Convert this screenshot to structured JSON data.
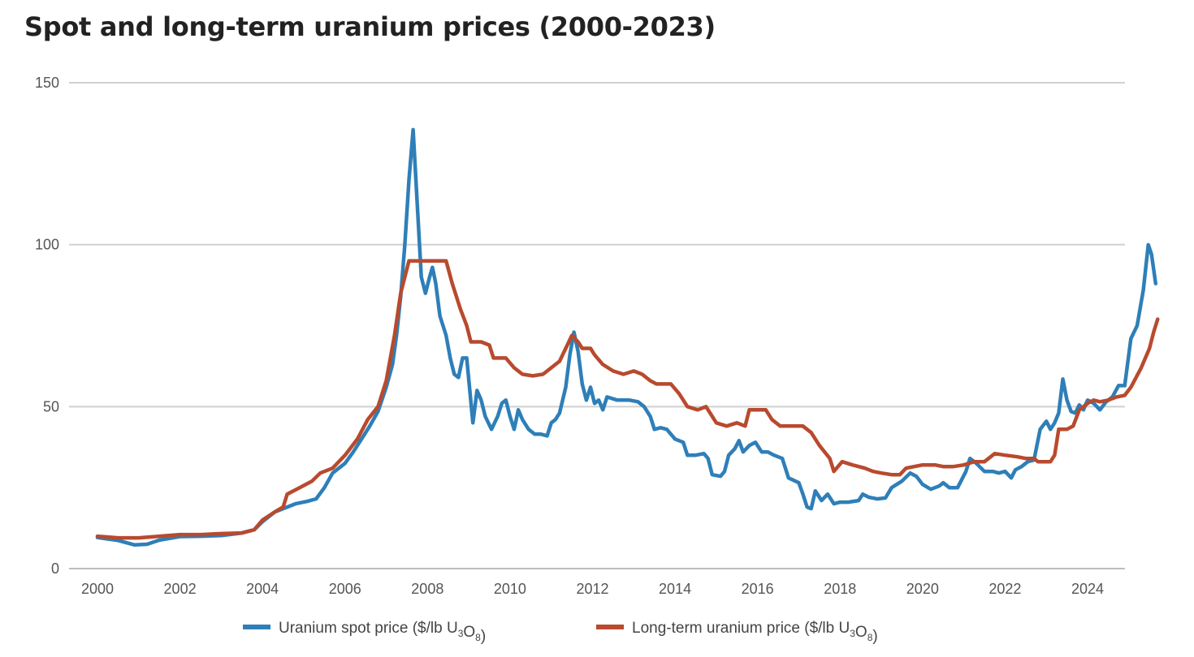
{
  "title": "Spot and long-term uranium prices (2000-2023)",
  "chart_data": {
    "type": "line",
    "title": "Spot and long-term uranium prices (2000-2023)",
    "xlabel": "",
    "ylabel": "",
    "xlim": [
      2000,
      2025
    ],
    "ylim": [
      0,
      150
    ],
    "yticks": [
      0,
      50,
      100,
      150
    ],
    "xticks": [
      2000,
      2002,
      2004,
      2006,
      2008,
      2010,
      2012,
      2014,
      2016,
      2018,
      2020,
      2022,
      2024
    ],
    "grid": true,
    "legend_position": "bottom",
    "series": [
      {
        "name": "Uranium spot price ($/lb U3O8)",
        "legend_main": "Uranium spot price ($/lb U",
        "legend_sub1": "3",
        "legend_mid": "O",
        "legend_sub2": "8",
        "legend_tail": ")",
        "color": "#2e7fb8",
        "points": [
          [
            2000,
            9.6
          ],
          [
            2000.5,
            8.7
          ],
          [
            2000.9,
            7.3
          ],
          [
            2001.2,
            7.5
          ],
          [
            2001.5,
            8.8
          ],
          [
            2002,
            9.9
          ],
          [
            2002.5,
            10
          ],
          [
            2003,
            10.2
          ],
          [
            2003.5,
            11
          ],
          [
            2003.8,
            12
          ],
          [
            2004,
            14.5
          ],
          [
            2004.3,
            17.5
          ],
          [
            2004.5,
            18.5
          ],
          [
            2004.8,
            20
          ],
          [
            2005.1,
            20.8
          ],
          [
            2005.3,
            21.5
          ],
          [
            2005.5,
            25
          ],
          [
            2005.7,
            29.5
          ],
          [
            2006,
            32.5
          ],
          [
            2006.2,
            36
          ],
          [
            2006.4,
            40
          ],
          [
            2006.6,
            44
          ],
          [
            2006.8,
            48.5
          ],
          [
            2007,
            56
          ],
          [
            2007.15,
            63
          ],
          [
            2007.25,
            72
          ],
          [
            2007.35,
            84
          ],
          [
            2007.45,
            100
          ],
          [
            2007.55,
            120
          ],
          [
            2007.65,
            135.5
          ],
          [
            2007.75,
            113
          ],
          [
            2007.85,
            90
          ],
          [
            2007.95,
            85
          ],
          [
            2008.05,
            90
          ],
          [
            2008.12,
            93
          ],
          [
            2008.2,
            88
          ],
          [
            2008.3,
            78
          ],
          [
            2008.45,
            72
          ],
          [
            2008.55,
            65
          ],
          [
            2008.65,
            60
          ],
          [
            2008.75,
            59
          ],
          [
            2008.85,
            65
          ],
          [
            2008.95,
            65
          ],
          [
            2009.1,
            45
          ],
          [
            2009.2,
            55
          ],
          [
            2009.3,
            52
          ],
          [
            2009.4,
            47
          ],
          [
            2009.55,
            43
          ],
          [
            2009.7,
            47
          ],
          [
            2009.8,
            51
          ],
          [
            2009.9,
            52
          ],
          [
            2010,
            47
          ],
          [
            2010.1,
            43
          ],
          [
            2010.2,
            49
          ],
          [
            2010.3,
            46
          ],
          [
            2010.45,
            43
          ],
          [
            2010.6,
            41.5
          ],
          [
            2010.75,
            41.5
          ],
          [
            2010.9,
            41
          ],
          [
            2011,
            45
          ],
          [
            2011.1,
            46
          ],
          [
            2011.2,
            48
          ],
          [
            2011.35,
            56
          ],
          [
            2011.45,
            66
          ],
          [
            2011.55,
            73
          ],
          [
            2011.65,
            67
          ],
          [
            2011.75,
            57
          ],
          [
            2011.85,
            52
          ],
          [
            2011.95,
            56
          ],
          [
            2012.05,
            51
          ],
          [
            2012.15,
            52
          ],
          [
            2012.25,
            49
          ],
          [
            2012.35,
            53
          ],
          [
            2012.6,
            52
          ],
          [
            2012.9,
            52
          ],
          [
            2013.1,
            51.5
          ],
          [
            2013.25,
            50
          ],
          [
            2013.4,
            47
          ],
          [
            2013.5,
            43
          ],
          [
            2013.65,
            43.5
          ],
          [
            2013.8,
            43
          ],
          [
            2014,
            40
          ],
          [
            2014.2,
            39
          ],
          [
            2014.3,
            35
          ],
          [
            2014.5,
            35
          ],
          [
            2014.7,
            35.5
          ],
          [
            2014.8,
            34
          ],
          [
            2014.9,
            29
          ],
          [
            2015.1,
            28.5
          ],
          [
            2015.2,
            30
          ],
          [
            2015.3,
            35
          ],
          [
            2015.45,
            37
          ],
          [
            2015.55,
            39.5
          ],
          [
            2015.65,
            36
          ],
          [
            2015.8,
            38
          ],
          [
            2015.95,
            39
          ],
          [
            2016.1,
            36
          ],
          [
            2016.25,
            36
          ],
          [
            2016.4,
            35
          ],
          [
            2016.6,
            34
          ],
          [
            2016.75,
            28
          ],
          [
            2017,
            26.5
          ],
          [
            2017.1,
            23
          ],
          [
            2017.2,
            19
          ],
          [
            2017.3,
            18.5
          ],
          [
            2017.4,
            24
          ],
          [
            2017.55,
            21
          ],
          [
            2017.7,
            23
          ],
          [
            2017.85,
            20
          ],
          [
            2018,
            20.5
          ],
          [
            2018.2,
            20.5
          ],
          [
            2018.45,
            21
          ],
          [
            2018.55,
            23
          ],
          [
            2018.7,
            22
          ],
          [
            2018.9,
            21.5
          ],
          [
            2019.1,
            21.8
          ],
          [
            2019.25,
            25
          ],
          [
            2019.5,
            27
          ],
          [
            2019.7,
            29.5
          ],
          [
            2019.85,
            28.5
          ],
          [
            2020,
            26
          ],
          [
            2020.2,
            24.5
          ],
          [
            2020.4,
            25.5
          ],
          [
            2020.5,
            26.5
          ],
          [
            2020.65,
            25
          ],
          [
            2020.85,
            25
          ],
          [
            2021.05,
            30
          ],
          [
            2021.15,
            34
          ],
          [
            2021.3,
            32.5
          ],
          [
            2021.5,
            30
          ],
          [
            2021.7,
            30
          ],
          [
            2021.85,
            29.5
          ],
          [
            2022,
            30
          ],
          [
            2022.15,
            28
          ],
          [
            2022.25,
            30.5
          ],
          [
            2022.4,
            31.5
          ],
          [
            2022.55,
            33
          ],
          [
            2022.7,
            33.5
          ],
          [
            2022.85,
            43
          ],
          [
            2023,
            45.5
          ],
          [
            2023.1,
            43
          ],
          [
            2023.2,
            45
          ],
          [
            2023.3,
            48
          ],
          [
            2023.4,
            58.5
          ],
          [
            2023.5,
            52
          ],
          [
            2023.6,
            48.5
          ],
          [
            2023.7,
            48
          ],
          [
            2023.8,
            50.5
          ],
          [
            2023.9,
            49
          ],
          [
            2024,
            52
          ],
          [
            2024.15,
            51
          ],
          [
            2024.3,
            49
          ],
          [
            2024.45,
            51.5
          ],
          [
            2024.6,
            53
          ],
          [
            2024.75,
            56.5
          ],
          [
            2024.9,
            56.5
          ],
          [
            2025.05,
            71
          ],
          [
            2025.2,
            75
          ],
          [
            2025.35,
            86
          ],
          [
            2025.47,
            100
          ],
          [
            2025.55,
            97
          ],
          [
            2025.65,
            88
          ]
        ]
      },
      {
        "name": "Long-term uranium price ($/lb U3O8)",
        "legend_main": "Long-term uranium price ($/lb U",
        "legend_sub1": "3",
        "legend_mid": "O",
        "legend_sub2": "8",
        "legend_tail": ")",
        "color": "#b84a2e",
        "points": [
          [
            2000,
            10
          ],
          [
            2000.5,
            9.5
          ],
          [
            2001,
            9.5
          ],
          [
            2001.5,
            10
          ],
          [
            2002,
            10.5
          ],
          [
            2002.5,
            10.5
          ],
          [
            2003,
            10.8
          ],
          [
            2003.5,
            11
          ],
          [
            2003.8,
            12
          ],
          [
            2004,
            15
          ],
          [
            2004.3,
            17.5
          ],
          [
            2004.5,
            19
          ],
          [
            2004.6,
            23
          ],
          [
            2004.9,
            25
          ],
          [
            2005.2,
            27
          ],
          [
            2005.4,
            29.5
          ],
          [
            2005.7,
            31
          ],
          [
            2006,
            35
          ],
          [
            2006.3,
            40
          ],
          [
            2006.55,
            46
          ],
          [
            2006.8,
            50
          ],
          [
            2007,
            58
          ],
          [
            2007.2,
            72
          ],
          [
            2007.35,
            85
          ],
          [
            2007.55,
            95
          ],
          [
            2007.8,
            95
          ],
          [
            2008.2,
            95
          ],
          [
            2008.45,
            95
          ],
          [
            2008.6,
            88
          ],
          [
            2008.8,
            80
          ],
          [
            2008.95,
            75
          ],
          [
            2009.05,
            70
          ],
          [
            2009.3,
            70
          ],
          [
            2009.5,
            69
          ],
          [
            2009.6,
            65
          ],
          [
            2009.9,
            65
          ],
          [
            2010.1,
            62
          ],
          [
            2010.3,
            60
          ],
          [
            2010.55,
            59.5
          ],
          [
            2010.8,
            60
          ],
          [
            2011,
            62
          ],
          [
            2011.2,
            64
          ],
          [
            2011.35,
            68
          ],
          [
            2011.5,
            72
          ],
          [
            2011.65,
            70
          ],
          [
            2011.75,
            68
          ],
          [
            2011.95,
            68
          ],
          [
            2012.05,
            66
          ],
          [
            2012.25,
            63
          ],
          [
            2012.5,
            61
          ],
          [
            2012.75,
            60
          ],
          [
            2013,
            61
          ],
          [
            2013.2,
            60
          ],
          [
            2013.4,
            58
          ],
          [
            2013.55,
            57
          ],
          [
            2013.9,
            57
          ],
          [
            2014.1,
            54
          ],
          [
            2014.3,
            50
          ],
          [
            2014.55,
            49
          ],
          [
            2014.75,
            50
          ],
          [
            2015,
            45
          ],
          [
            2015.25,
            44
          ],
          [
            2015.5,
            45
          ],
          [
            2015.7,
            44
          ],
          [
            2015.8,
            49
          ],
          [
            2016.2,
            49
          ],
          [
            2016.35,
            46
          ],
          [
            2016.55,
            44
          ],
          [
            2017.1,
            44
          ],
          [
            2017.3,
            42
          ],
          [
            2017.5,
            38
          ],
          [
            2017.75,
            34
          ],
          [
            2017.85,
            30
          ],
          [
            2018.05,
            33
          ],
          [
            2018.3,
            32
          ],
          [
            2018.6,
            31
          ],
          [
            2018.8,
            30
          ],
          [
            2019,
            29.5
          ],
          [
            2019.25,
            29
          ],
          [
            2019.45,
            29
          ],
          [
            2019.6,
            31
          ],
          [
            2019.8,
            31.5
          ],
          [
            2020,
            32
          ],
          [
            2020.3,
            32
          ],
          [
            2020.5,
            31.5
          ],
          [
            2020.75,
            31.5
          ],
          [
            2021,
            32
          ],
          [
            2021.25,
            33
          ],
          [
            2021.5,
            33
          ],
          [
            2021.75,
            35.5
          ],
          [
            2022,
            35
          ],
          [
            2022.3,
            34.5
          ],
          [
            2022.5,
            34
          ],
          [
            2022.7,
            34
          ],
          [
            2022.8,
            33
          ],
          [
            2023.1,
            33
          ],
          [
            2023.2,
            35
          ],
          [
            2023.3,
            43
          ],
          [
            2023.5,
            43
          ],
          [
            2023.65,
            44
          ],
          [
            2023.8,
            49
          ],
          [
            2024,
            51
          ],
          [
            2024.15,
            52
          ],
          [
            2024.3,
            51.5
          ],
          [
            2024.5,
            52
          ],
          [
            2024.7,
            53
          ],
          [
            2024.9,
            53.5
          ],
          [
            2025.05,
            56
          ],
          [
            2025.3,
            62
          ],
          [
            2025.5,
            68
          ],
          [
            2025.6,
            73
          ],
          [
            2025.7,
            77
          ]
        ]
      }
    ]
  }
}
